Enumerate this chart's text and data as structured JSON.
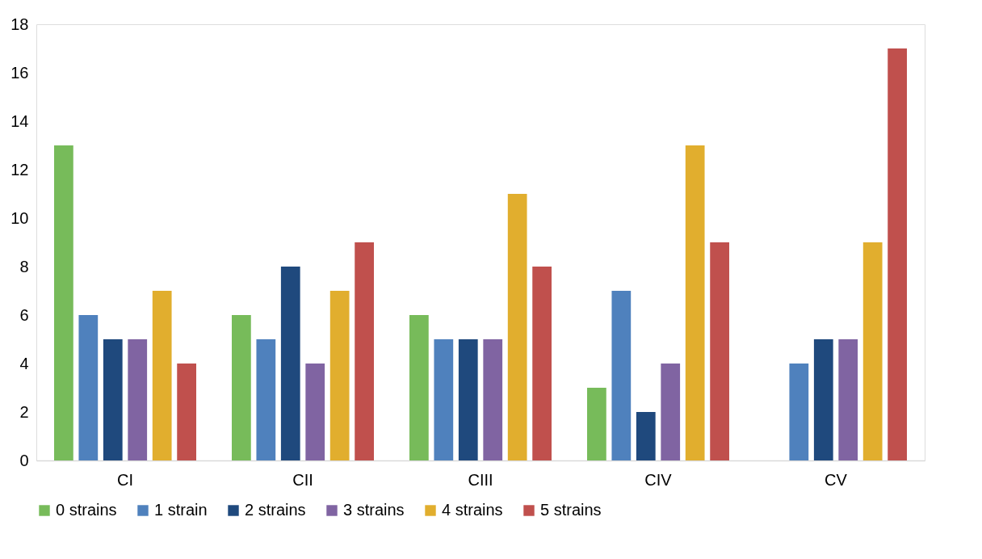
{
  "chart_data": {
    "type": "bar",
    "categories": [
      "CI",
      "CII",
      "CIII",
      "CIV",
      "CV"
    ],
    "series": [
      {
        "name": "0 strains",
        "color": "#77bb5a",
        "values": [
          13,
          6,
          6,
          3,
          0
        ]
      },
      {
        "name": "1 strain",
        "color": "#4f81bd",
        "values": [
          6,
          5,
          5,
          7,
          4
        ]
      },
      {
        "name": "2 strains",
        "color": "#1f497d",
        "values": [
          5,
          8,
          5,
          2,
          5
        ]
      },
      {
        "name": "3 strains",
        "color": "#8064a2",
        "values": [
          5,
          4,
          5,
          4,
          5
        ]
      },
      {
        "name": "4 strains",
        "color": "#e1ae2e",
        "values": [
          7,
          7,
          11,
          13,
          9
        ]
      },
      {
        "name": "5 strains",
        "color": "#c0504d",
        "values": [
          4,
          9,
          8,
          9,
          17
        ]
      }
    ],
    "ylim": [
      0,
      18
    ],
    "yticks": [
      0,
      2,
      4,
      6,
      8,
      10,
      12,
      14,
      16,
      18
    ],
    "grid": false,
    "legend": "bottom"
  }
}
